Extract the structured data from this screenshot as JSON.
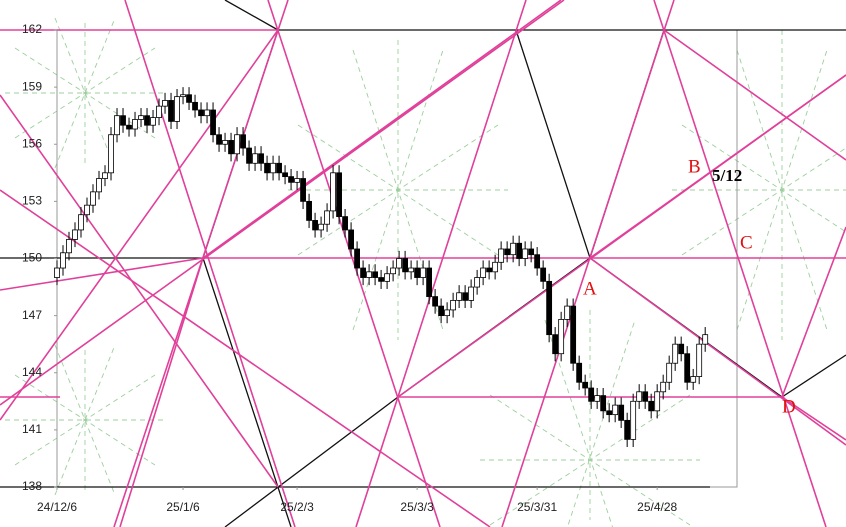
{
  "chart_data": {
    "type": "candlestick",
    "xlim": [
      0,
      113.3
    ],
    "xticks": [
      {
        "value": 0,
        "label": "24/12/6"
      },
      {
        "value": 21,
        "label": "25/1/6"
      },
      {
        "value": 40,
        "label": "25/2/3"
      },
      {
        "value": 60,
        "label": "25/3/3"
      },
      {
        "value": 80,
        "label": "25/3/31"
      },
      {
        "value": 100,
        "label": "25/4/28"
      }
    ],
    "ylim": [
      138,
      162
    ],
    "yticks": [
      138,
      141,
      144,
      147,
      150,
      153,
      156,
      159,
      162
    ],
    "up_color": "#ffffff",
    "down_color": "#000000",
    "open": [
      149.0,
      149.5,
      150.3,
      151.0,
      151.5,
      152.3,
      152.8,
      153.5,
      154.2,
      154.5,
      156.5,
      157.5,
      157.0,
      156.8,
      157.3,
      157.5,
      157.0,
      157.4,
      158.0,
      158.3,
      157.2,
      158.5,
      158.6,
      158.2,
      157.8,
      157.5,
      157.8,
      156.5,
      156.0,
      156.2,
      155.5,
      156.5,
      155.8,
      155.0,
      155.5,
      155.0,
      154.5,
      155.0,
      154.5,
      154.3,
      154.0,
      154.2,
      153.0,
      152.0,
      151.5,
      151.8,
      152.5,
      154.5,
      152.2,
      151.5,
      150.5,
      149.5,
      149.0,
      149.3,
      149.0,
      148.8,
      149.2,
      149.5,
      150.0,
      149.3,
      149.5,
      149.0,
      149.5,
      148.0,
      147.5,
      147.0,
      147.3,
      147.8,
      148.2,
      147.8,
      148.5,
      149.0,
      149.5,
      149.3,
      149.8,
      150.5,
      150.2,
      150.8,
      150.0,
      150.5,
      150.2,
      149.5,
      148.8,
      146.0,
      145.0,
      146.8,
      147.5,
      144.5,
      143.5,
      143.2,
      142.5,
      142.8,
      142.0,
      141.8,
      142.3,
      141.5,
      140.5,
      142.5,
      143.0,
      142.5,
      142.0,
      143.0,
      143.5,
      144.5,
      145.5,
      145.0,
      143.5,
      143.8,
      145.5
    ],
    "high": [
      149.9,
      150.7,
      151.4,
      151.9,
      152.7,
      153.2,
      153.9,
      154.6,
      154.9,
      156.9,
      157.9,
      157.9,
      157.4,
      157.7,
      157.9,
      157.9,
      157.8,
      158.4,
      158.7,
      158.7,
      158.9,
      159.0,
      159.0,
      158.6,
      158.2,
      158.2,
      158.2,
      156.9,
      156.6,
      156.6,
      156.9,
      156.9,
      156.2,
      155.9,
      155.9,
      155.4,
      155.4,
      155.4,
      154.9,
      154.7,
      154.6,
      154.6,
      153.4,
      152.4,
      152.2,
      152.9,
      154.9,
      154.9,
      152.6,
      151.9,
      150.9,
      149.9,
      149.7,
      149.7,
      149.4,
      149.6,
      149.9,
      150.4,
      150.4,
      149.9,
      149.9,
      149.9,
      149.9,
      148.4,
      147.9,
      147.7,
      148.2,
      148.6,
      148.6,
      148.9,
      149.4,
      149.9,
      149.9,
      150.2,
      150.9,
      150.9,
      151.2,
      151.2,
      150.9,
      150.9,
      150.6,
      149.9,
      149.2,
      146.4,
      147.2,
      147.9,
      147.9,
      144.9,
      143.9,
      143.6,
      143.2,
      143.2,
      142.4,
      142.7,
      142.7,
      141.9,
      142.9,
      143.4,
      143.4,
      142.9,
      143.4,
      143.9,
      144.9,
      145.9,
      145.9,
      145.4,
      144.2,
      145.9,
      146.4
    ],
    "low": [
      148.6,
      149.1,
      149.9,
      150.6,
      151.1,
      151.9,
      152.4,
      153.1,
      153.8,
      154.1,
      156.1,
      156.6,
      156.4,
      156.4,
      156.9,
      156.6,
      156.6,
      157.0,
      157.6,
      156.8,
      156.8,
      158.1,
      157.8,
      157.4,
      157.1,
      157.1,
      156.1,
      155.6,
      155.6,
      155.1,
      155.1,
      155.4,
      154.6,
      154.6,
      154.6,
      154.1,
      154.1,
      154.1,
      153.9,
      153.6,
      153.6,
      152.6,
      151.6,
      151.1,
      151.1,
      151.4,
      152.1,
      151.8,
      151.1,
      150.1,
      149.1,
      148.6,
      148.6,
      148.6,
      148.4,
      148.4,
      148.8,
      149.1,
      148.9,
      148.9,
      148.6,
      148.6,
      147.6,
      147.1,
      146.6,
      146.6,
      146.9,
      147.4,
      147.4,
      147.4,
      148.1,
      148.6,
      148.9,
      148.9,
      149.4,
      149.8,
      149.8,
      149.6,
      149.6,
      149.8,
      149.1,
      148.4,
      145.6,
      144.6,
      144.6,
      146.4,
      144.1,
      143.1,
      142.8,
      142.1,
      142.1,
      141.6,
      141.4,
      141.4,
      141.1,
      140.1,
      140.1,
      142.1,
      142.1,
      141.6,
      141.6,
      142.6,
      143.1,
      144.1,
      144.6,
      143.1,
      143.1,
      143.4,
      145.1
    ],
    "close": [
      149.5,
      150.3,
      151.0,
      151.5,
      152.3,
      152.8,
      153.5,
      154.2,
      154.5,
      156.5,
      157.5,
      157.0,
      156.8,
      157.3,
      157.5,
      157.0,
      157.4,
      158.0,
      158.3,
      157.2,
      158.5,
      158.6,
      158.2,
      157.8,
      157.5,
      157.8,
      156.5,
      156.0,
      156.2,
      155.5,
      156.5,
      155.8,
      155.0,
      155.5,
      155.0,
      154.5,
      155.0,
      154.5,
      154.3,
      154.0,
      154.2,
      153.0,
      152.0,
      151.5,
      151.8,
      152.5,
      154.5,
      152.2,
      151.5,
      150.5,
      149.5,
      149.0,
      149.3,
      149.0,
      148.8,
      149.2,
      149.5,
      150.0,
      149.3,
      149.5,
      149.0,
      149.5,
      148.0,
      147.5,
      147.0,
      147.3,
      147.8,
      148.2,
      147.8,
      148.5,
      149.0,
      149.5,
      149.3,
      149.8,
      150.5,
      150.2,
      150.8,
      150.0,
      150.5,
      150.2,
      149.5,
      148.8,
      146.0,
      145.0,
      146.8,
      147.5,
      144.5,
      143.5,
      143.2,
      142.5,
      142.8,
      142.0,
      141.8,
      142.3,
      141.5,
      140.5,
      142.5,
      143.0,
      142.5,
      142.0,
      143.0,
      143.5,
      144.5,
      145.5,
      145.0,
      143.5,
      143.8,
      145.5,
      146.0
    ],
    "annotations": [
      "A",
      "B",
      "5/12",
      "C",
      "D"
    ]
  }
}
